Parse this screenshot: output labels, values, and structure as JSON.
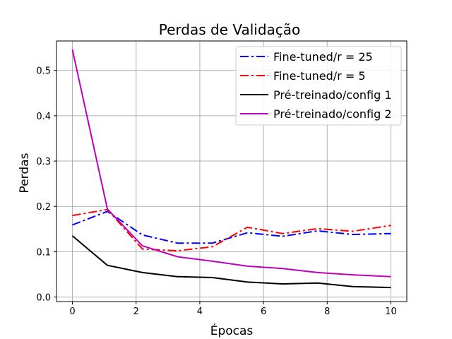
{
  "chart_data": {
    "type": "line",
    "title": "Perdas de Validação",
    "xlabel": "Épocas",
    "ylabel": "Perdas",
    "xlim": [
      -0.5,
      10.5
    ],
    "ylim": [
      -0.01,
      0.565
    ],
    "xticks": [
      0,
      2,
      4,
      6,
      8,
      10
    ],
    "yticks": [
      0.0,
      0.1,
      0.2,
      0.3,
      0.4,
      0.5
    ],
    "ytick_labels": [
      "0.0",
      "0.1",
      "0.2",
      "0.3",
      "0.4",
      "0.5"
    ],
    "grid": true,
    "legend_position": "top-right",
    "x": [
      0,
      1.1,
      2.2,
      3.3,
      4.4,
      5.5,
      6.6,
      7.7,
      8.8,
      10
    ],
    "series": [
      {
        "name": "Fine-tuned/r = 25",
        "color": "#0000ff",
        "style": "dashdot",
        "values": [
          0.159,
          0.189,
          0.137,
          0.119,
          0.119,
          0.142,
          0.134,
          0.146,
          0.138,
          0.14
        ]
      },
      {
        "name": "Fine-tuned/r = 5",
        "color": "#ff0000",
        "style": "dashdot",
        "values": [
          0.18,
          0.193,
          0.106,
          0.102,
          0.111,
          0.154,
          0.14,
          0.151,
          0.145,
          0.158
        ]
      },
      {
        "name": "Pré-treinado/config 1",
        "color": "#000000",
        "style": "solid",
        "values": [
          0.135,
          0.07,
          0.054,
          0.045,
          0.043,
          0.033,
          0.029,
          0.031,
          0.023,
          0.021
        ]
      },
      {
        "name": "Pré-treinado/config 2",
        "color": "#bf00bf",
        "style": "solid",
        "values": [
          0.546,
          0.194,
          0.113,
          0.089,
          0.079,
          0.068,
          0.063,
          0.054,
          0.049,
          0.045
        ]
      }
    ]
  }
}
